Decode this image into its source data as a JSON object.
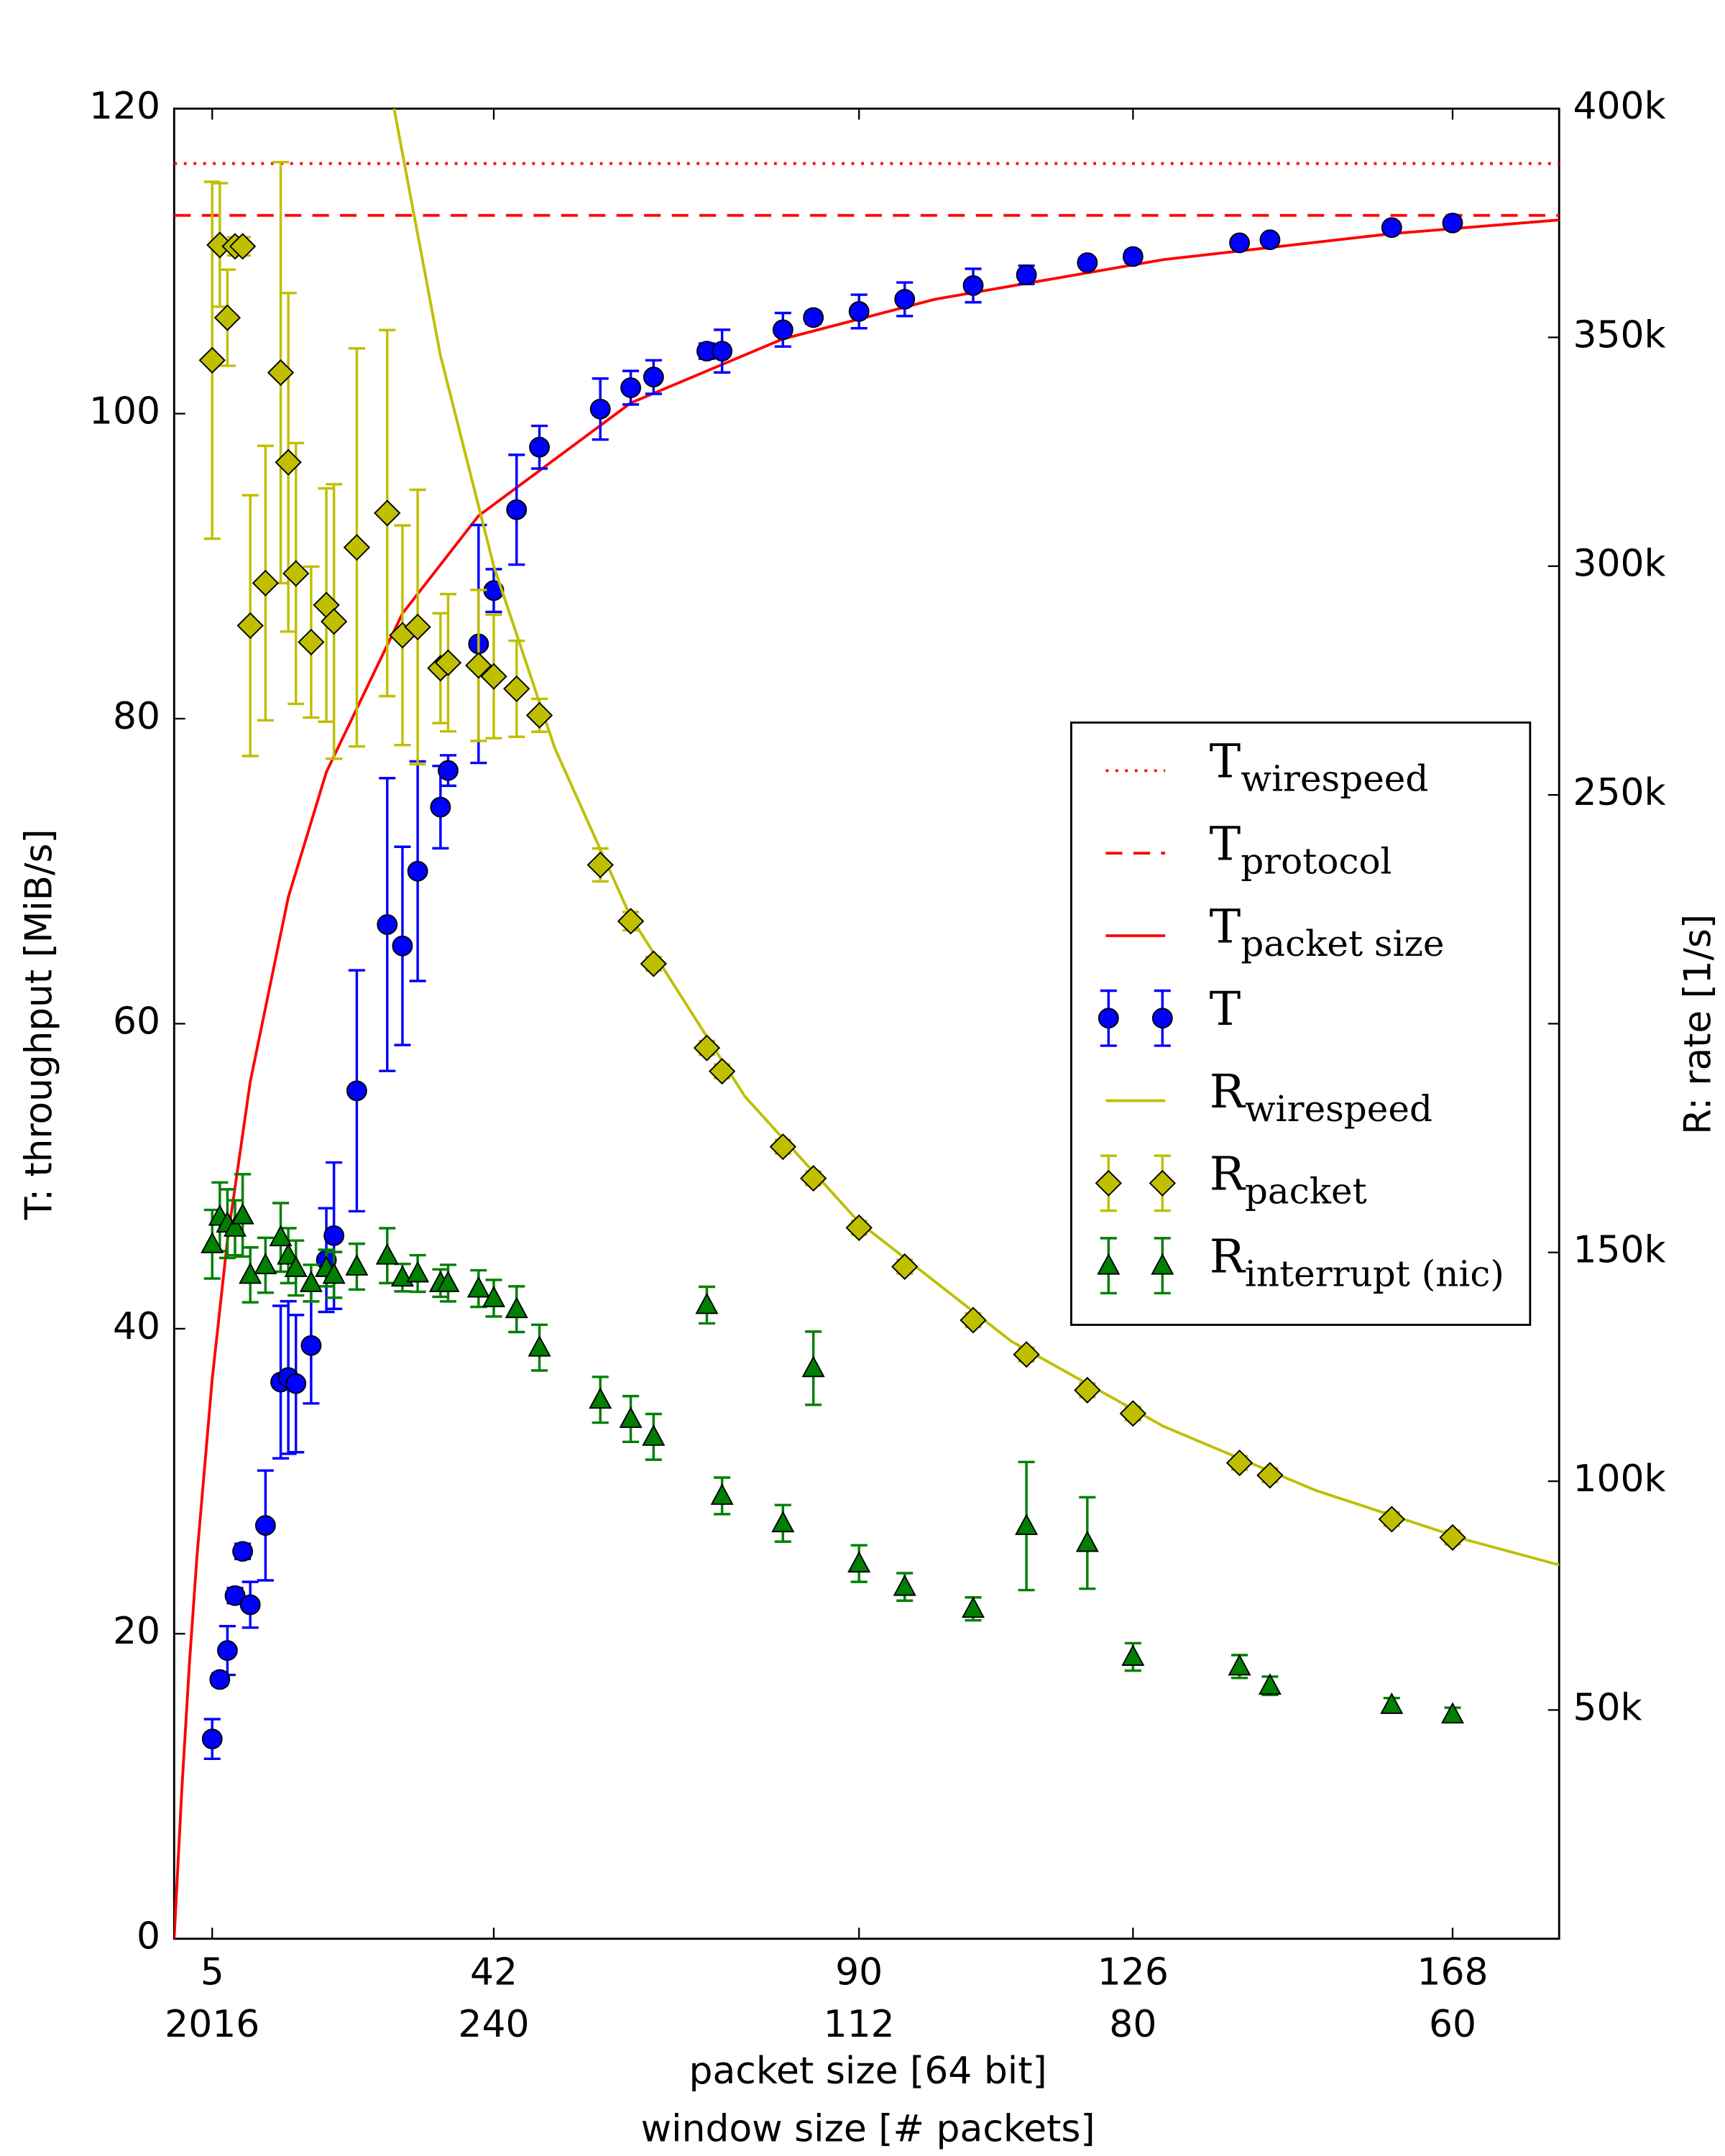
{
  "chart_data": {
    "type": "errorbar",
    "x_label": "packet size [64 bit]",
    "x2_label": "window size [# packets]",
    "y_label": "T: throughput [MiB/s]",
    "y2_label": "R: rate [1/s]",
    "xlim": [
      0,
      182
    ],
    "xticks": [
      5,
      42,
      90,
      126,
      168
    ],
    "xticks2": [
      {
        "value": 5,
        "label": "2016"
      },
      {
        "value": 42,
        "label": "240"
      },
      {
        "value": 90,
        "label": "112"
      },
      {
        "value": 126,
        "label": "80"
      },
      {
        "value": 168,
        "label": "60"
      }
    ],
    "ylim": [
      0,
      120
    ],
    "yticks": [
      0,
      20,
      40,
      60,
      80,
      100,
      120
    ],
    "y2lim": [
      0,
      400000
    ],
    "y2ticks": [
      {
        "value": 50000,
        "label": "50k"
      },
      {
        "value": 100000,
        "label": "100k"
      },
      {
        "value": 150000,
        "label": "150k"
      },
      {
        "value": 200000,
        "label": null
      },
      {
        "value": 250000,
        "label": "250k"
      },
      {
        "value": 300000,
        "label": "300k"
      },
      {
        "value": 350000,
        "label": "350k"
      },
      {
        "value": 400000,
        "label": "400k"
      }
    ],
    "legend": "center right",
    "series": [
      {
        "name": "T",
        "subscript": "wirespeed",
        "kind": "hline",
        "dash": "dotted",
        "color": "#ff0000",
        "values": [
          116.4
        ]
      },
      {
        "name": "T",
        "subscript": "protocol",
        "kind": "hline",
        "dash": "dashed",
        "color": "#ff0000",
        "values": [
          113.0
        ]
      },
      {
        "name": "T",
        "subscript": "packet size",
        "kind": "line",
        "color": "#ff0000",
        "x": [
          0,
          1,
          2,
          3,
          5,
          7,
          10,
          15,
          20,
          30,
          40,
          60,
          80,
          100,
          130,
          160,
          182
        ],
        "values": [
          0,
          9.73,
          18.0,
          25.1,
          36.7,
          45.8,
          56.2,
          68.3,
          76.5,
          86.9,
          93.3,
          100.7,
          104.9,
          107.5,
          110.1,
          111.8,
          112.7
        ]
      },
      {
        "name": "T",
        "kind": "errorbar",
        "marker": "circle",
        "color": "#0000ff",
        "x": [
          5,
          6,
          7,
          8,
          9,
          10,
          12,
          14,
          15,
          16,
          18,
          20,
          21,
          24,
          28,
          30,
          32,
          35,
          36,
          40,
          42,
          45,
          48,
          56,
          60,
          63,
          70,
          72,
          80,
          84,
          90,
          96,
          105,
          112,
          120,
          126,
          140,
          144,
          160,
          168
        ],
        "values": [
          13.1,
          17.0,
          18.9,
          22.5,
          25.4,
          21.9,
          27.1,
          36.5,
          36.8,
          36.4,
          38.9,
          44.5,
          46.1,
          55.6,
          66.5,
          65.1,
          70.0,
          74.2,
          76.6,
          84.9,
          88.4,
          93.7,
          97.8,
          100.3,
          101.7,
          102.4,
          104.1,
          104.1,
          105.5,
          106.3,
          106.7,
          107.5,
          108.4,
          109.1,
          109.9,
          110.3,
          111.2,
          111.4,
          112.2,
          112.5
        ],
        "errors": [
          1.3,
          0.4,
          1.6,
          0.5,
          0.5,
          1.5,
          3.6,
          5.0,
          5.0,
          4.5,
          3.8,
          3.4,
          4.8,
          7.9,
          9.6,
          6.5,
          7.2,
          2.7,
          1.0,
          7.8,
          1.4,
          3.6,
          1.4,
          2.0,
          1.1,
          1.1,
          0.5,
          1.4,
          1.1,
          0.4,
          1.1,
          1.1,
          1.1,
          0.6,
          0.3,
          0.4,
          0.3,
          0.3,
          0.2,
          0.2
        ]
      },
      {
        "name": "R",
        "subscript": "wirespeed",
        "kind": "line",
        "axis": "y2",
        "color": "#bfbf00",
        "x": [
          28.9,
          35,
          42,
          50,
          60,
          75,
          90,
          110,
          130,
          150,
          170,
          182
        ],
        "values": [
          400000,
          346000,
          300000,
          260300,
          223300,
          184100,
          156600,
          130600,
          112000,
          98000,
          87100,
          81700
        ]
      },
      {
        "name": "R",
        "subscript": "packet",
        "kind": "errorbar",
        "marker": "diamond",
        "axis": "y2",
        "color": "#bfbf00",
        "x": [
          5,
          6,
          7,
          8,
          9,
          10,
          12,
          14,
          15,
          16,
          18,
          20,
          21,
          24,
          28,
          30,
          32,
          35,
          36,
          40,
          42,
          45,
          48,
          56,
          60,
          63,
          70,
          72,
          80,
          84,
          90,
          96,
          105,
          112,
          120,
          126,
          140,
          144,
          160,
          168
        ],
        "values": [
          345000,
          370200,
          354300,
          369900,
          369900,
          287000,
          296300,
          342300,
          322700,
          298400,
          283400,
          291500,
          287900,
          304100,
          311600,
          284900,
          286700,
          277700,
          278900,
          278300,
          275900,
          273200,
          267400,
          234700,
          222400,
          213100,
          194700,
          189600,
          173100,
          166200,
          155400,
          146900,
          135200,
          127700,
          119900,
          114800,
          104000,
          101300,
          91700,
          87700
        ],
        "errors": [
          39000,
          13500,
          10500,
          2000,
          2000,
          28500,
          30000,
          46000,
          37000,
          28500,
          16500,
          25500,
          30000,
          43500,
          40000,
          24000,
          30000,
          12000,
          15000,
          16500,
          13500,
          10500,
          3600,
          3600,
          2000,
          1500,
          1500,
          1500,
          1500,
          1500,
          1500,
          1500,
          1500,
          1500,
          1500,
          1500,
          1500,
          1500,
          1500,
          1500
        ]
      },
      {
        "name": "R",
        "subscript": "interrupt (nic)",
        "kind": "errorbar",
        "marker": "triangle",
        "axis": "y2",
        "color": "#008000",
        "x": [
          5,
          6,
          7,
          8,
          9,
          10,
          12,
          14,
          15,
          16,
          18,
          20,
          21,
          24,
          28,
          30,
          32,
          35,
          36,
          40,
          42,
          45,
          48,
          56,
          60,
          63,
          70,
          72,
          80,
          84,
          90,
          96,
          105,
          112,
          120,
          126,
          140,
          144,
          160,
          168
        ],
        "values": [
          151800,
          157800,
          156300,
          155400,
          158100,
          145100,
          147200,
          153300,
          149300,
          146600,
          143300,
          146600,
          145100,
          146900,
          149300,
          144500,
          145400,
          143300,
          143300,
          142100,
          140000,
          137600,
          129200,
          117800,
          113600,
          109700,
          138500,
          96800,
          90800,
          124700,
          82000,
          76900,
          72100,
          90200,
          86500,
          61600,
          59500,
          55300,
          51100,
          49000
        ],
        "errors": [
          7500,
          7500,
          7500,
          6000,
          9000,
          6000,
          6000,
          7500,
          6000,
          6000,
          4000,
          4000,
          5000,
          5000,
          6000,
          3000,
          4000,
          3000,
          4000,
          4000,
          4000,
          5000,
          5000,
          5000,
          5000,
          5000,
          4000,
          4000,
          4000,
          8000,
          4000,
          3000,
          2500,
          14000,
          10000,
          3000,
          2500,
          2000,
          1500,
          1500
        ]
      }
    ]
  }
}
